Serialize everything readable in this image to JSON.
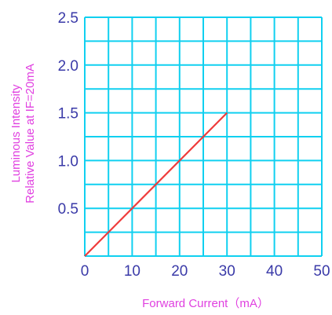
{
  "chart_data": {
    "type": "line",
    "title": "",
    "xlabel": "Forward Current（mA）",
    "ylabel_lines": [
      "Luminous Intensity",
      "Relative Value at IF=20mA"
    ],
    "xlim": [
      0,
      50
    ],
    "ylim": [
      0,
      2.5
    ],
    "x_ticks": [
      0,
      10,
      20,
      30,
      40,
      50
    ],
    "x_tick_labels": [
      "0",
      "10",
      "20",
      "30",
      "40",
      "50"
    ],
    "y_ticks": [
      0.5,
      1.0,
      1.5,
      2.0,
      2.5
    ],
    "y_tick_labels": [
      "0.5",
      "1.0",
      "1.5",
      "2.0",
      "2.5"
    ],
    "x_grid_step": 5,
    "y_grid_step": 0.25,
    "grid": true,
    "legend": "none",
    "series": [
      {
        "x": [
          0,
          30
        ],
        "y": [
          0,
          1.5
        ]
      }
    ],
    "colors": {
      "grid": "#10d0f0",
      "line": "#ef3b3b",
      "tick_text": "#3a3aa8",
      "axis_title": "#e040e0"
    }
  }
}
